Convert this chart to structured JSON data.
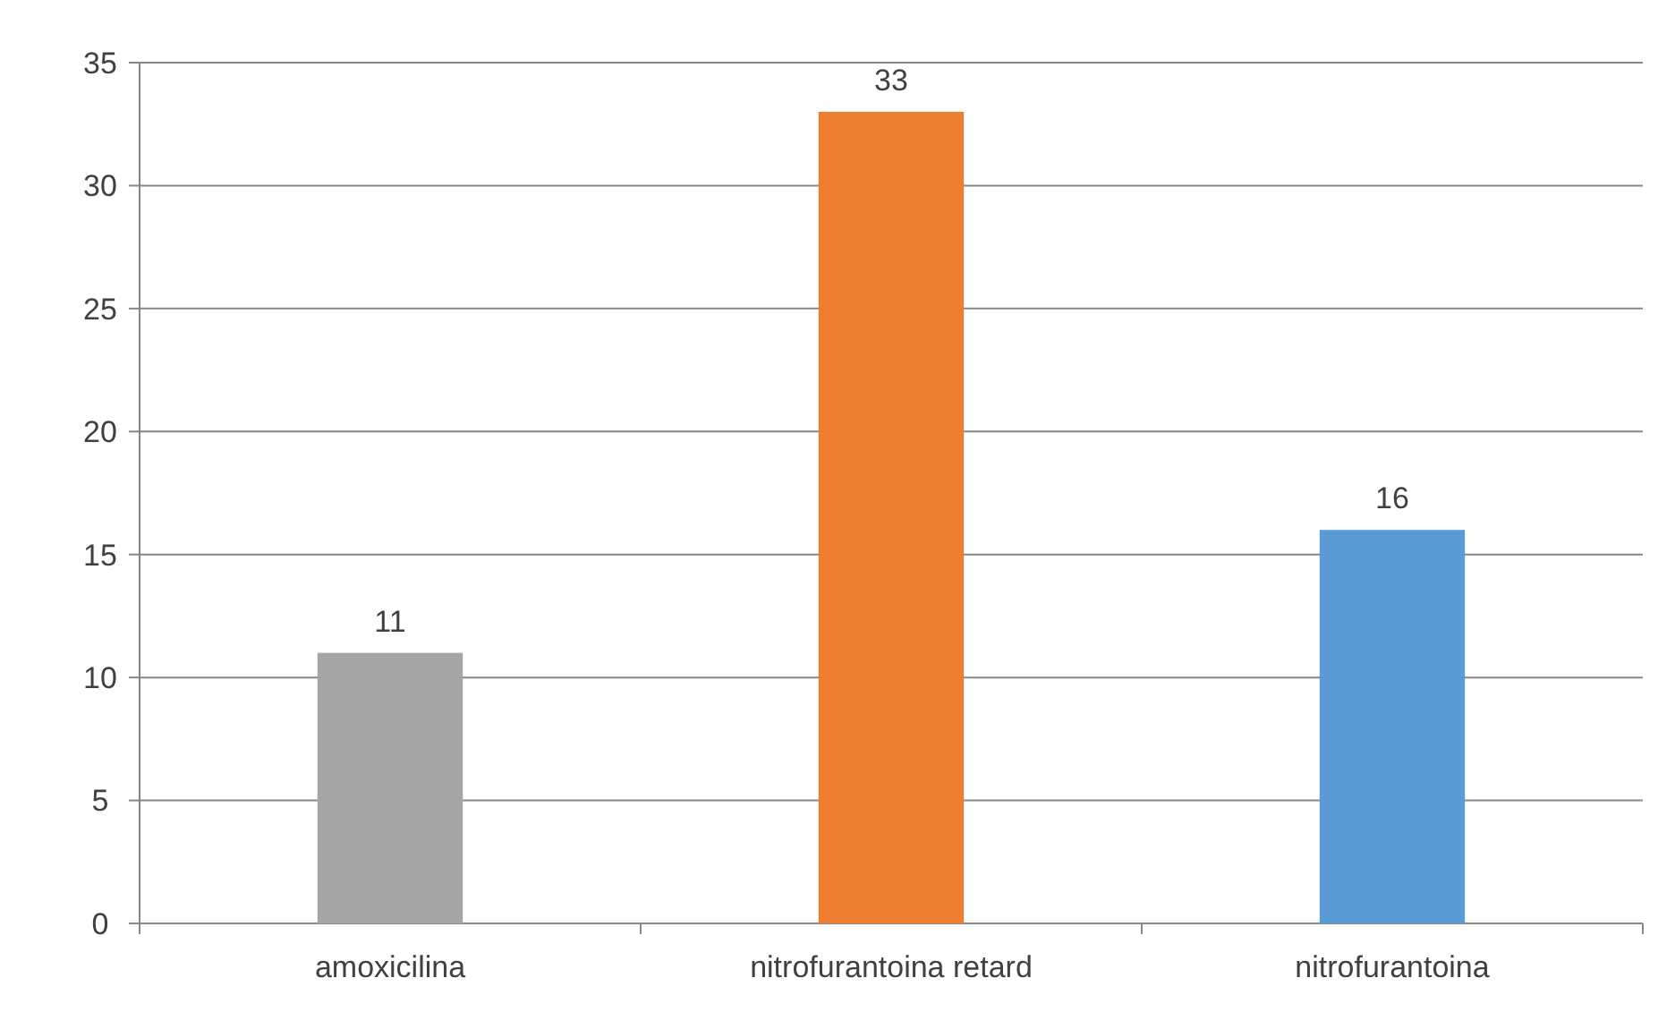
{
  "chart_data": {
    "type": "bar",
    "categories": [
      "amoxicilina",
      "nitrofurantoina retard",
      "nitrofurantoina"
    ],
    "values": [
      11,
      33,
      16
    ],
    "colors": [
      "#a5a5a5",
      "#ed7d31",
      "#5b9bd5"
    ],
    "ylim": [
      0,
      35
    ],
    "yticks": [
      0,
      5,
      10,
      15,
      20,
      25,
      30,
      35
    ],
    "grid": "y",
    "data_labels": true
  }
}
